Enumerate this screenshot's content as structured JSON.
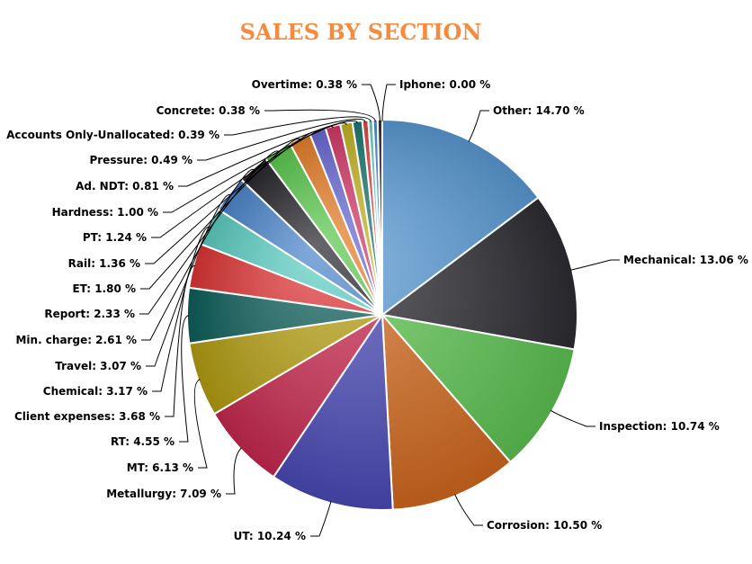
{
  "chart_data": {
    "type": "pie",
    "title": "SALES BY SECTION",
    "title_color": "#f58b3d",
    "slices": [
      {
        "label": "Other: 14.70 %",
        "value": 14.7,
        "color": "#5b9bd5"
      },
      {
        "label": "Mechanical: 13.06 %",
        "value": 13.06,
        "color": "#2d2d33"
      },
      {
        "label": "Inspection: 10.74 %",
        "value": 10.74,
        "color": "#5ec452"
      },
      {
        "label": "Corrosion: 10.50 %",
        "value": 10.5,
        "color": "#d2691f"
      },
      {
        "label": "UT: 10.24 %",
        "value": 10.24,
        "color": "#4a4ab8"
      },
      {
        "label": "Metallurgy: 7.09 %",
        "value": 7.09,
        "color": "#c8284f"
      },
      {
        "label": "MT: 6.13 %",
        "value": 6.13,
        "color": "#b59f12"
      },
      {
        "label": "RT: 4.55 %",
        "value": 4.55,
        "color": "#0d5f5a"
      },
      {
        "label": "Client expenses: 3.68 %",
        "value": 3.68,
        "color": "#e03535"
      },
      {
        "label": "Chemical: 3.17 %",
        "value": 3.17,
        "color": "#5ccfc3"
      },
      {
        "label": "Travel: 3.07 %",
        "value": 3.07,
        "color": "#4b86cc"
      },
      {
        "label": "Min. charge: 2.61 %",
        "value": 2.61,
        "color": "#26262c"
      },
      {
        "label": "Report: 2.33 %",
        "value": 2.33,
        "color": "#5cc94f"
      },
      {
        "label": "ET: 1.80 %",
        "value": 1.8,
        "color": "#e8802a"
      },
      {
        "label": "Rail: 1.36 %",
        "value": 1.36,
        "color": "#6b6bd6"
      },
      {
        "label": "PT: 1.24 %",
        "value": 1.24,
        "color": "#d63a6a"
      },
      {
        "label": "Hardness: 1.00 %",
        "value": 1.0,
        "color": "#c4b524"
      },
      {
        "label": "Ad. NDT: 0.81 %",
        "value": 0.81,
        "color": "#1d7a72"
      },
      {
        "label": "Pressure: 0.49 %",
        "value": 0.49,
        "color": "#e34848"
      },
      {
        "label": "Accounts Only-Unallocated: 0.39 %",
        "value": 0.39,
        "color": "#6fd2c8"
      },
      {
        "label": "Concrete: 0.38 %",
        "value": 0.38,
        "color": "#4f8fd6"
      },
      {
        "label": "Overtime: 0.38 %",
        "value": 0.38,
        "color": "#333339"
      },
      {
        "label": "Iphone: 0.00 %",
        "value": 0.0,
        "color": "#5ec452"
      }
    ]
  }
}
